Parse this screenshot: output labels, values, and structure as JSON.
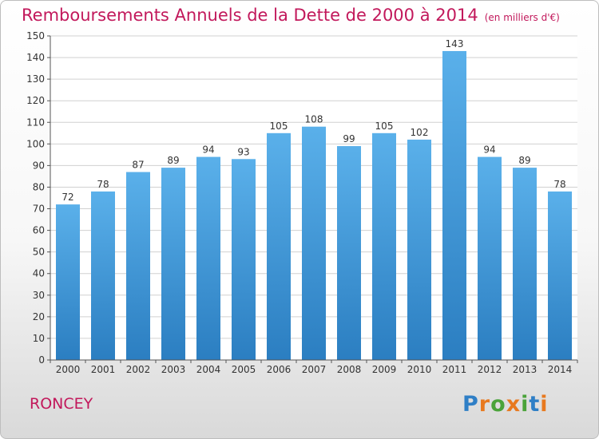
{
  "title": "Remboursements Annuels de la Dette de 2000 à 2014",
  "title_unit": "(en milliers d'€)",
  "commune": "RONCEY",
  "logo": {
    "text": "Proxiti",
    "letters": [
      {
        "char": "P",
        "color": "#2f7fc6"
      },
      {
        "char": "r",
        "color": "#e8791f"
      },
      {
        "char": "o",
        "color": "#4aa33a"
      },
      {
        "char": "x",
        "color": "#e8791f"
      },
      {
        "char": "i",
        "color": "#4aa33a"
      },
      {
        "char": "t",
        "color": "#2f7fc6"
      },
      {
        "char": "i",
        "color": "#e8791f"
      }
    ]
  },
  "colors": {
    "accent": "#c2185b",
    "bar_top": "#5ab0ea",
    "bar_bottom": "#2b7ec1",
    "grid": "#d0d0d0",
    "axis": "#555555",
    "text": "#333333"
  },
  "chart_data": {
    "type": "bar",
    "title": "Remboursements Annuels de la Dette de 2000 à 2014",
    "xlabel": "",
    "ylabel": "",
    "categories": [
      "2000",
      "2001",
      "2002",
      "2003",
      "2004",
      "2005",
      "2006",
      "2007",
      "2008",
      "2009",
      "2010",
      "2011",
      "2012",
      "2013",
      "2014"
    ],
    "values": [
      72,
      78,
      87,
      89,
      94,
      93,
      105,
      108,
      99,
      105,
      102,
      143,
      94,
      89,
      78
    ],
    "ylim": [
      0,
      150
    ],
    "yticks": [
      0,
      10,
      20,
      30,
      40,
      50,
      60,
      70,
      80,
      90,
      100,
      110,
      120,
      130,
      140,
      150
    ],
    "grid": true,
    "data_labels": true
  }
}
